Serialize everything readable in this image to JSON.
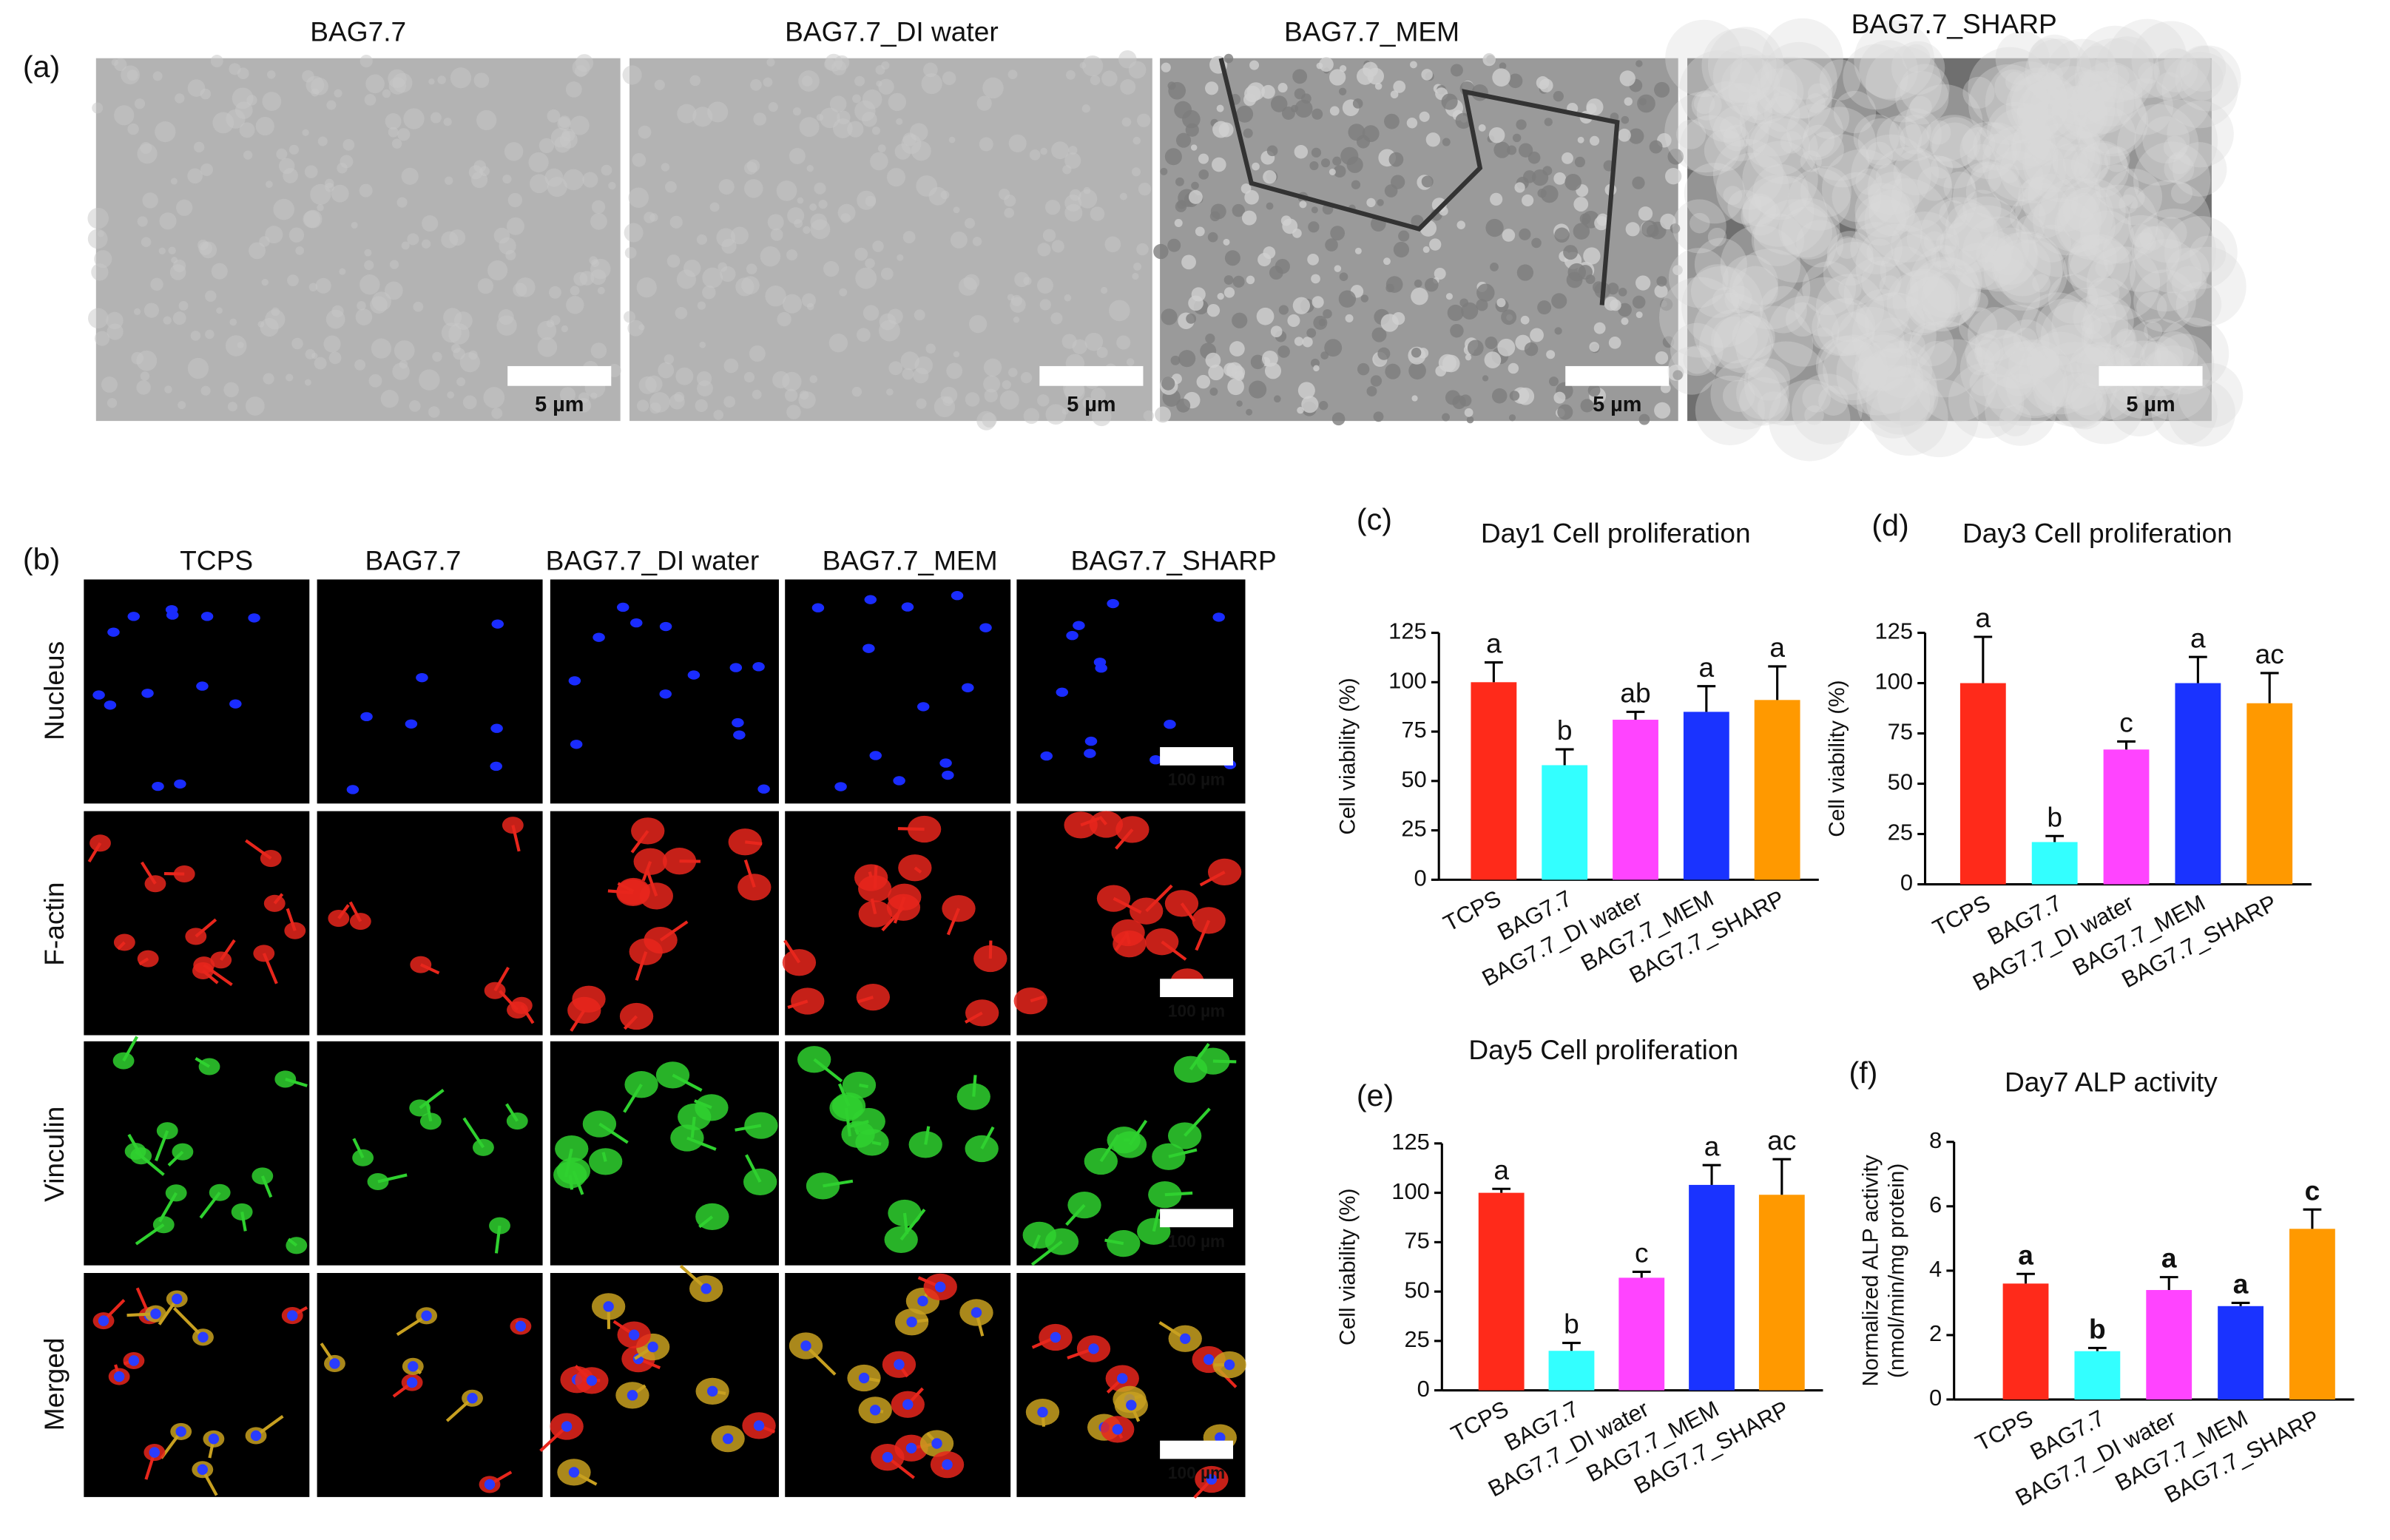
{
  "sem_panel": {
    "label": "(a)",
    "titles": [
      "BAG7.7",
      "BAG7.7_DI water",
      "BAG7.7_MEM",
      "BAG7.7_SHARP"
    ],
    "scale_bar_label": "5 µm"
  },
  "fluorescence_panel": {
    "label": "(b)",
    "columns": [
      "TCPS",
      "BAG7.7",
      "BAG7.7_DI water",
      "BAG7.7_MEM",
      "BAG7.7_SHARP"
    ],
    "rows": [
      "Nucleus",
      "F-actin",
      "Vinculin",
      "Merged"
    ],
    "scale_bar_label": "100 µm"
  },
  "chart_data": [
    {
      "type": "bar",
      "panel_label": "(c)",
      "title": "Day1 Cell proliferation",
      "y_label": [
        "Cell viability (%)"
      ],
      "categories": [
        "TCPS",
        "BAG7.7",
        "BAG7.7_DI water",
        "BAG7.7_MEM",
        "BAG7.7_SHARP"
      ],
      "values": [
        100,
        58,
        81,
        85,
        91
      ],
      "errors": [
        10,
        8,
        4,
        13,
        17
      ],
      "colors": [
        "#ff2a1a",
        "#33ffff",
        "#ff44ff",
        "#1a33ff",
        "#ff9900"
      ],
      "letters": [
        "a",
        "b",
        "ab",
        "a",
        "a"
      ],
      "letters_bold": false,
      "ylim": [
        0,
        125
      ],
      "yticks": [
        0,
        25,
        50,
        75,
        100,
        125
      ]
    },
    {
      "type": "bar",
      "panel_label": "(d)",
      "title": "Day3 Cell proliferation",
      "y_label": [
        "Cell viability (%)"
      ],
      "categories": [
        "TCPS",
        "BAG7.7",
        "BAG7.7_DI water",
        "BAG7.7_MEM",
        "BAG7.7_SHARP"
      ],
      "values": [
        100,
        21,
        67,
        100,
        90
      ],
      "errors": [
        23,
        3,
        4,
        13,
        15
      ],
      "colors": [
        "#ff2a1a",
        "#33ffff",
        "#ff44ff",
        "#1a33ff",
        "#ff9900"
      ],
      "letters": [
        "a",
        "b",
        "c",
        "a",
        "ac"
      ],
      "letters_bold": false,
      "ylim": [
        0,
        125
      ],
      "yticks": [
        0,
        25,
        50,
        75,
        100,
        125
      ]
    },
    {
      "type": "bar",
      "panel_label": "(e)",
      "title": "Day5 Cell proliferation",
      "y_label": [
        "Cell viability (%)"
      ],
      "categories": [
        "TCPS",
        "BAG7.7",
        "BAG7.7_DI water",
        "BAG7.7_MEM",
        "BAG7.7_SHARP"
      ],
      "values": [
        100,
        20,
        57,
        104,
        99
      ],
      "errors": [
        2,
        4,
        3,
        10,
        18
      ],
      "colors": [
        "#ff2a1a",
        "#33ffff",
        "#ff44ff",
        "#1a33ff",
        "#ff9900"
      ],
      "letters": [
        "a",
        "b",
        "c",
        "a",
        "ac"
      ],
      "letters_bold": false,
      "ylim": [
        0,
        125
      ],
      "yticks": [
        0,
        25,
        50,
        75,
        100,
        125
      ]
    },
    {
      "type": "bar",
      "panel_label": "(f)",
      "title": "Day7 ALP activity",
      "y_label": [
        "Normalized ALP activity",
        "(nmol/min/mg protein)"
      ],
      "categories": [
        "TCPS",
        "BAG7.7",
        "BAG7.7_DI water",
        "BAG7.7_MEM",
        "BAG7.7_SHARP"
      ],
      "values": [
        3.6,
        1.5,
        3.4,
        2.9,
        5.3
      ],
      "errors": [
        0.3,
        0.1,
        0.4,
        0.1,
        0.6
      ],
      "colors": [
        "#ff2a1a",
        "#33ffff",
        "#ff44ff",
        "#1a33ff",
        "#ff9900"
      ],
      "letters": [
        "a",
        "b",
        "a",
        "a",
        "c"
      ],
      "letters_bold": true,
      "ylim": [
        0,
        8
      ],
      "yticks": [
        0,
        2,
        4,
        6,
        8
      ]
    }
  ]
}
